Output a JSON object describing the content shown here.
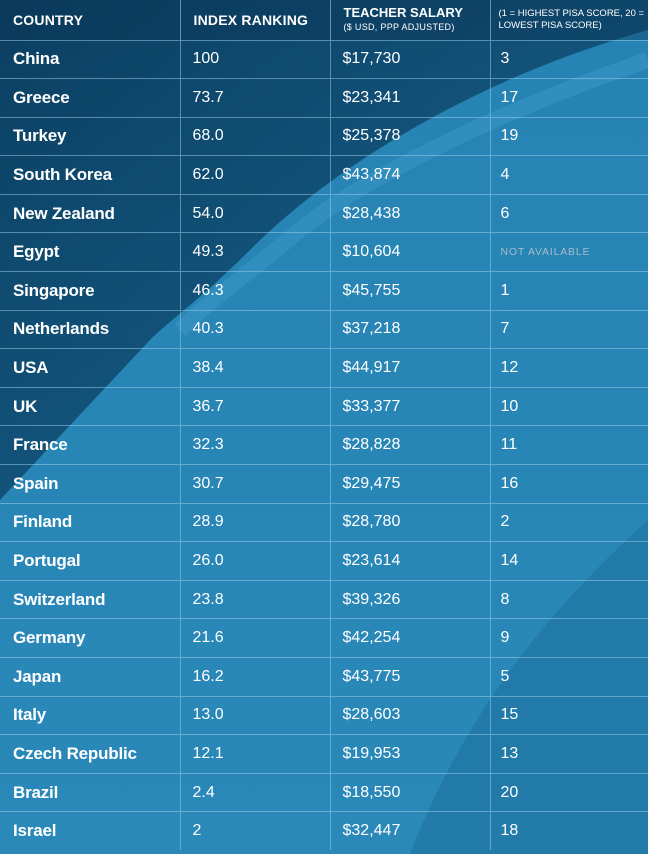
{
  "header": {
    "country": "COUNTRY",
    "index": "INDEX RANKING",
    "salary": "TEACHER SALARY",
    "salary_sub": "($ USD, PPP ADJUSTED)",
    "pisa": "(1 = HIGHEST PISA SCORE, 20 = LOWEST PISA SCORE)"
  },
  "colors": {
    "background_dark": "#0e4d73",
    "background_light": "#2a87b6",
    "text": "#ffffff",
    "not_available": "#a9bccb"
  },
  "chart_data": {
    "type": "table",
    "columns": [
      "COUNTRY",
      "INDEX RANKING",
      "TEACHER SALARY ($ USD, PPP ADJUSTED)",
      "(1 = HIGHEST PISA SCORE, 20 = LOWEST PISA SCORE)"
    ],
    "rows": [
      {
        "country": "China",
        "index": "100",
        "salary": "$17,730",
        "pisa": "3"
      },
      {
        "country": "Greece",
        "index": "73.7",
        "salary": "$23,341",
        "pisa": "17"
      },
      {
        "country": "Turkey",
        "index": "68.0",
        "salary": "$25,378",
        "pisa": "19"
      },
      {
        "country": "South Korea",
        "index": "62.0",
        "salary": "$43,874",
        "pisa": "4"
      },
      {
        "country": "New Zealand",
        "index": "54.0",
        "salary": "$28,438",
        "pisa": "6"
      },
      {
        "country": "Egypt",
        "index": "49.3",
        "salary": "$10,604",
        "pisa": "NOT AVAILABLE"
      },
      {
        "country": "Singapore",
        "index": "46.3",
        "salary": "$45,755",
        "pisa": "1"
      },
      {
        "country": "Netherlands",
        "index": "40.3",
        "salary": "$37,218",
        "pisa": "7"
      },
      {
        "country": "USA",
        "index": "38.4",
        "salary": "$44,917",
        "pisa": "12"
      },
      {
        "country": "UK",
        "index": "36.7",
        "salary": "$33,377",
        "pisa": "10"
      },
      {
        "country": "France",
        "index": "32.3",
        "salary": "$28,828",
        "pisa": "11"
      },
      {
        "country": "Spain",
        "index": "30.7",
        "salary": "$29,475",
        "pisa": "16"
      },
      {
        "country": "Finland",
        "index": "28.9",
        "salary": "$28,780",
        "pisa": "2"
      },
      {
        "country": "Portugal",
        "index": "26.0",
        "salary": "$23,614",
        "pisa": "14"
      },
      {
        "country": "Switzerland",
        "index": "23.8",
        "salary": "$39,326",
        "pisa": "8"
      },
      {
        "country": "Germany",
        "index": "21.6",
        "salary": "$42,254",
        "pisa": "9"
      },
      {
        "country": "Japan",
        "index": "16.2",
        "salary": "$43,775",
        "pisa": "5"
      },
      {
        "country": "Italy",
        "index": "13.0",
        "salary": "$28,603",
        "pisa": "15"
      },
      {
        "country": "Czech Republic",
        "index": "12.1",
        "salary": "$19,953",
        "pisa": "13"
      },
      {
        "country": "Brazil",
        "index": "2.4",
        "salary": "$18,550",
        "pisa": "20"
      },
      {
        "country": "Israel",
        "index": "2",
        "salary": "$32,447",
        "pisa": "18"
      }
    ]
  }
}
